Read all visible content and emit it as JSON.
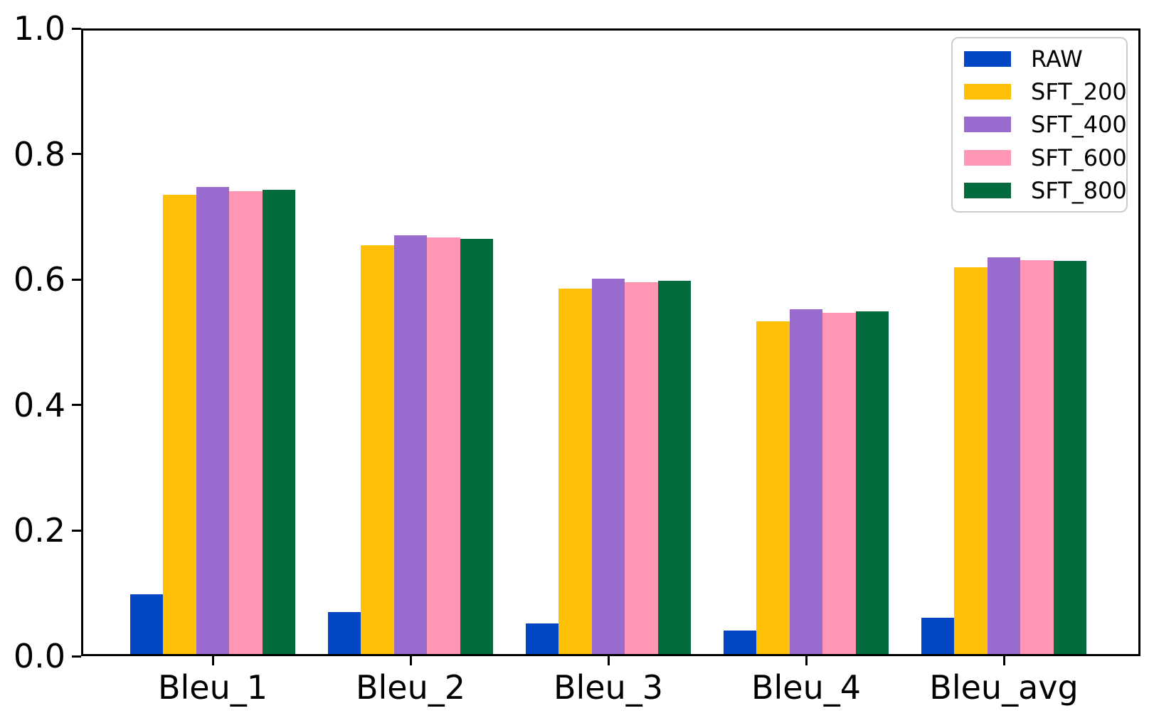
{
  "chart_data": {
    "type": "bar",
    "categories": [
      "Bleu_1",
      "Bleu_2",
      "Bleu_3",
      "Bleu_4",
      "Bleu_avg"
    ],
    "series": [
      {
        "name": "RAW",
        "color": "#0447C4",
        "values": [
          0.098,
          0.07,
          0.052,
          0.041,
          0.061
        ]
      },
      {
        "name": "SFT_200",
        "color": "#FFC107",
        "values": [
          0.735,
          0.655,
          0.585,
          0.533,
          0.619
        ]
      },
      {
        "name": "SFT_400",
        "color": "#9A6BCE",
        "values": [
          0.748,
          0.671,
          0.601,
          0.553,
          0.635
        ]
      },
      {
        "name": "SFT_600",
        "color": "#FF96B4",
        "values": [
          0.741,
          0.667,
          0.596,
          0.547,
          0.631
        ]
      },
      {
        "name": "SFT_800",
        "color": "#046C3C",
        "values": [
          0.743,
          0.665,
          0.598,
          0.549,
          0.63
        ]
      }
    ],
    "ylim": [
      0.0,
      1.0
    ],
    "ytick_labels": [
      "0.0",
      "0.2",
      "0.4",
      "0.6",
      "0.8",
      "1.0"
    ],
    "grid": false,
    "legend_position": "upper right",
    "axis_color": "#000000",
    "legend_border_color": "#cccccc"
  }
}
